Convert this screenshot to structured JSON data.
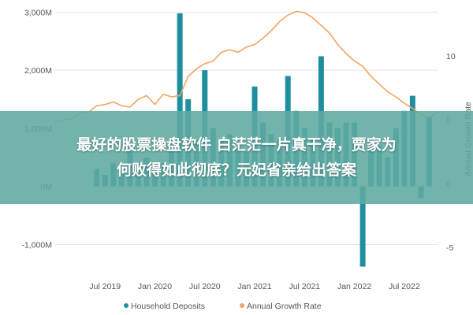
{
  "chart_data": {
    "type": "bar",
    "title": "",
    "legend": {
      "position": "bottom",
      "entries": [
        {
          "name": "Household Deposits",
          "marker": "circle",
          "color": "#1f8fa0"
        },
        {
          "name": "Annual Growth Rate",
          "marker": "circle",
          "color": "#f4a460"
        }
      ]
    },
    "x_ticks": [
      "Jul 2019",
      "Jan 2020",
      "Jul 2020",
      "Jan 2021",
      "Jul 2021",
      "Jan 2022",
      "Jul 2022"
    ],
    "left_axis": {
      "ticks": [
        "3,000M",
        "2,000M",
        "1,000M",
        "0M",
        "-1,000M"
      ],
      "values": [
        3000,
        2000,
        1000,
        0,
        -1000
      ],
      "ylim": [
        -1400,
        3100
      ]
    },
    "right_axis": {
      "ticks": [
        "10",
        "5",
        "0",
        "-5"
      ],
      "values": [
        10,
        5,
        0,
        -5
      ],
      "ylim": [
        -6.6,
        13.9
      ]
    },
    "x_start": "2019-01",
    "x_end": "2022-11",
    "series": [
      {
        "name": "Household Deposits",
        "type": "bar",
        "axis": "left",
        "color": "#1f8fa0",
        "x": [
          "2019-06",
          "2019-07",
          "2019-08",
          "2019-09",
          "2019-10",
          "2019-11",
          "2019-12",
          "2020-01",
          "2020-02",
          "2020-03",
          "2020-04",
          "2020-05",
          "2020-06",
          "2020-07",
          "2020-08",
          "2020-09",
          "2020-10",
          "2020-11",
          "2020-12",
          "2021-01",
          "2021-02",
          "2021-03",
          "2021-04",
          "2021-05",
          "2021-06",
          "2021-07",
          "2021-08",
          "2021-09",
          "2021-10",
          "2021-11",
          "2021-12",
          "2022-01",
          "2022-02",
          "2022-03",
          "2022-04",
          "2022-05",
          "2022-06",
          "2022-07",
          "2022-08",
          "2022-09",
          "2022-10"
        ],
        "values": [
          300,
          200,
          400,
          300,
          600,
          400,
          500,
          300,
          400,
          600,
          2980,
          1500,
          800,
          2000,
          1000,
          800,
          900,
          700,
          600,
          1720,
          1100,
          900,
          800,
          1900,
          1300,
          1000,
          800,
          2240,
          1100,
          1000,
          1100,
          1100,
          -1380,
          800,
          700,
          500,
          1000,
          1300,
          1560,
          -200,
          1200
        ]
      },
      {
        "name": "Annual Growth Rate",
        "type": "line",
        "axis": "right",
        "color": "#f4a460",
        "x": [
          "2019-01",
          "2019-02",
          "2019-03",
          "2019-04",
          "2019-05",
          "2019-06",
          "2019-07",
          "2019-08",
          "2019-09",
          "2019-10",
          "2019-11",
          "2019-12",
          "2020-01",
          "2020-02",
          "2020-03",
          "2020-04",
          "2020-05",
          "2020-06",
          "2020-07",
          "2020-08",
          "2020-09",
          "2020-10",
          "2020-11",
          "2020-12",
          "2021-01",
          "2021-02",
          "2021-03",
          "2021-04",
          "2021-05",
          "2021-06",
          "2021-07",
          "2021-08",
          "2021-09",
          "2021-10",
          "2021-11",
          "2021-12",
          "2022-01",
          "2022-02",
          "2022-03",
          "2022-04",
          "2022-05",
          "2022-06",
          "2022-07",
          "2022-08",
          "2022-09",
          "2022-10",
          "2022-11"
        ],
        "values": [
          4.8,
          5.0,
          5.1,
          5.5,
          5.6,
          6.1,
          6.2,
          6.4,
          6.1,
          6.0,
          6.6,
          6.9,
          6.2,
          7.0,
          6.8,
          6.9,
          8.4,
          9.0,
          9.4,
          9.6,
          10.3,
          10.5,
          10.3,
          10.7,
          10.9,
          11.4,
          12.0,
          12.7,
          13.2,
          13.5,
          13.4,
          13.0,
          12.4,
          11.8,
          10.9,
          10.2,
          9.6,
          9.2,
          8.4,
          7.8,
          7.2,
          6.8,
          6.3,
          5.9,
          5.4,
          5.2,
          5.6
        ]
      }
    ]
  },
  "overlay": {
    "line1": "最好的股票操盘软件 白茫茫一片真干净，贾家为",
    "line2": "何败得如此彻底？元妃省亲给出答案"
  }
}
